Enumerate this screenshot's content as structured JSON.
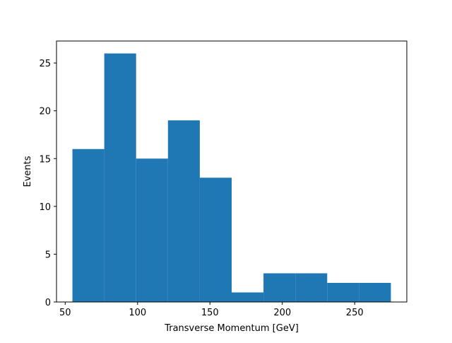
{
  "chart_data": {
    "type": "bar",
    "subtype": "histogram",
    "bins": [
      {
        "x0": 55,
        "x1": 77,
        "value": 16
      },
      {
        "x0": 77,
        "x1": 99,
        "value": 26
      },
      {
        "x0": 99,
        "x1": 121,
        "value": 15
      },
      {
        "x0": 121,
        "x1": 143,
        "value": 19
      },
      {
        "x0": 143,
        "x1": 165,
        "value": 13
      },
      {
        "x0": 165,
        "x1": 187,
        "value": 1
      },
      {
        "x0": 187,
        "x1": 209,
        "value": 3
      },
      {
        "x0": 209,
        "x1": 231,
        "value": 3
      },
      {
        "x0": 231,
        "x1": 253,
        "value": 2
      },
      {
        "x0": 253,
        "x1": 275,
        "value": 2
      }
    ],
    "title": "",
    "xlabel": "Transverse Momentum [GeV]",
    "ylabel": "Events",
    "xlim": [
      44,
      286
    ],
    "ylim": [
      0,
      27.3
    ],
    "xticks": [
      50,
      100,
      150,
      200,
      250
    ],
    "yticks": [
      0,
      5,
      10,
      15,
      20,
      25
    ],
    "grid": false,
    "legend": "none",
    "bar_color": "#1f77b4"
  }
}
